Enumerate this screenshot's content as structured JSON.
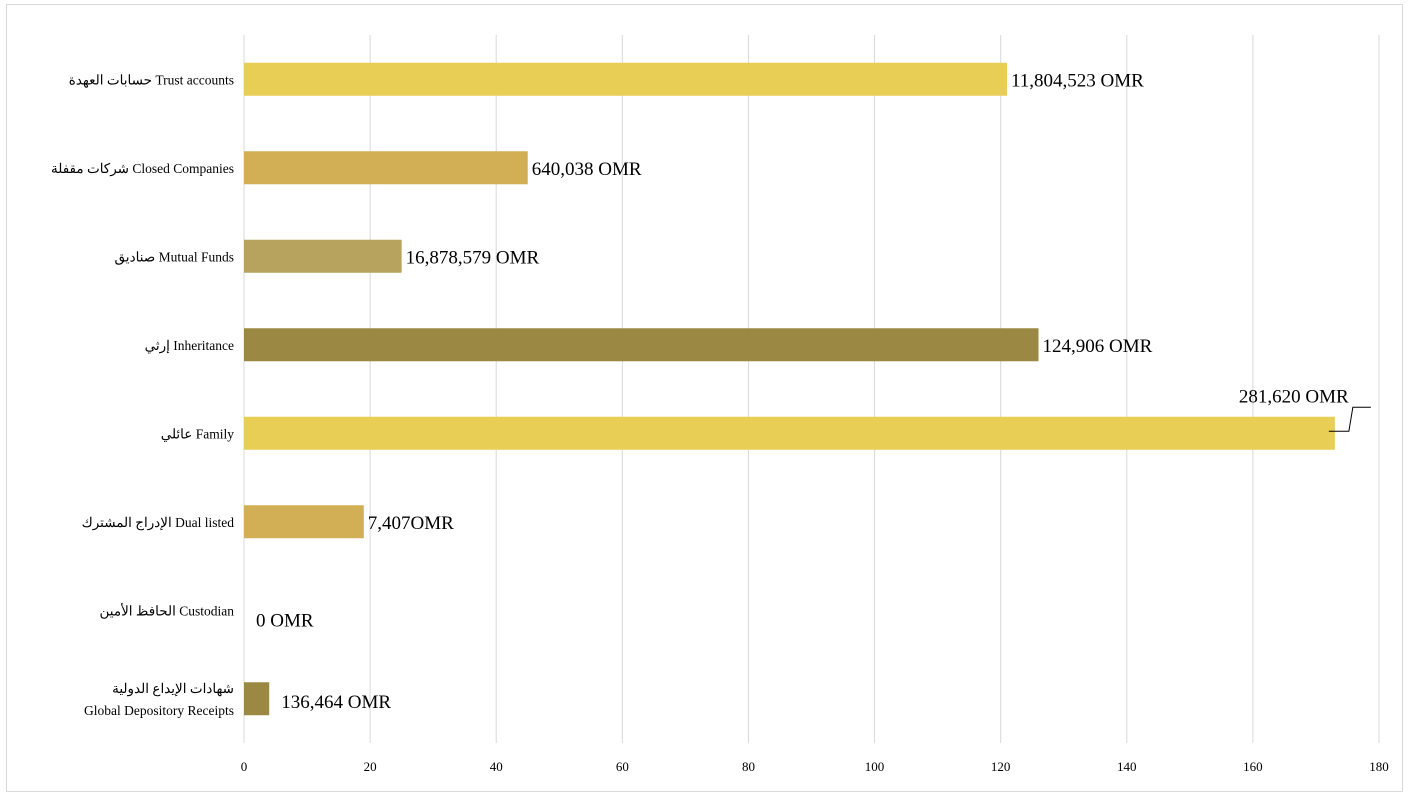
{
  "chart_data": {
    "type": "bar",
    "orientation": "horizontal",
    "title": "",
    "xlabel": "",
    "ylabel": "",
    "xlim": [
      0,
      180
    ],
    "x_ticks": [
      "0",
      "20",
      "40",
      "60",
      "80",
      "100",
      "120",
      "140",
      "160",
      "180"
    ],
    "grid": "vertical",
    "legend": "none",
    "categories": [
      {
        "label_lines": [
          "حسابات العهدة  Trust accounts"
        ],
        "value": 121,
        "data_label": "11,804,523 OMR",
        "color": "#E9CE55"
      },
      {
        "label_lines": [
          "شركات مقفلة Closed Companies"
        ],
        "value": 45,
        "data_label": "640,038 OMR",
        "color": "#D2AF55"
      },
      {
        "label_lines": [
          "صناديق Mutual Funds"
        ],
        "value": 25,
        "data_label": "16,878,579 OMR",
        "color": "#B7A35D"
      },
      {
        "label_lines": [
          "إرثي Inheritance"
        ],
        "value": 126,
        "data_label": "124,906 OMR",
        "color": "#9B8843"
      },
      {
        "label_lines": [
          "عائلي Family"
        ],
        "value": 173,
        "data_label": "281,620 OMR",
        "color": "#E9CE55"
      },
      {
        "label_lines": [
          "الإدراج المشترك  Dual listed"
        ],
        "value": 19,
        "data_label": "7,407OMR",
        "color": "#D2AF55"
      },
      {
        "label_lines": [
          "الحافظ الأمين  Custodian"
        ],
        "value": 0,
        "data_label": "0 OMR",
        "color": "#B7A35D"
      },
      {
        "label_lines": [
          "شهادات الإيداع الدولية",
          "Global Depository Receipts"
        ],
        "value": 4,
        "data_label": "136,464 OMR",
        "color": "#9B8843"
      }
    ]
  }
}
